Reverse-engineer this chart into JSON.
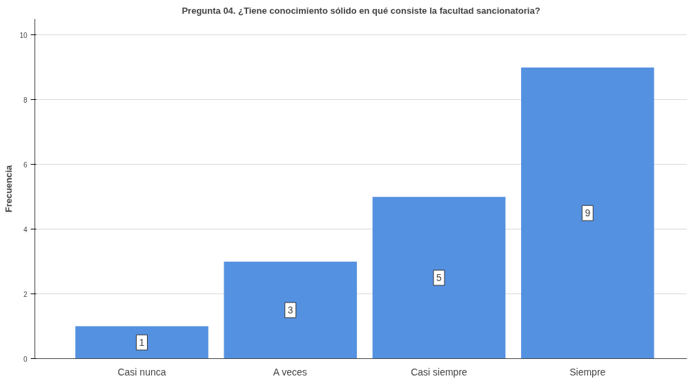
{
  "chart_data": {
    "type": "bar",
    "title": "Pregunta 04. ¿Tiene conocimiento sólido en qué consiste la facultad sancionatoria?",
    "ylabel": "Frecuencia",
    "categories": [
      "Casi nunca",
      "A veces",
      "Casi siempre",
      "Siempre"
    ],
    "values": [
      1,
      3,
      5,
      9
    ],
    "color": "#5591e1",
    "ylim": [
      0,
      10.5
    ],
    "yticks": [
      0,
      2,
      4,
      6,
      8,
      10
    ],
    "grid": "y",
    "data_labels": true
  }
}
